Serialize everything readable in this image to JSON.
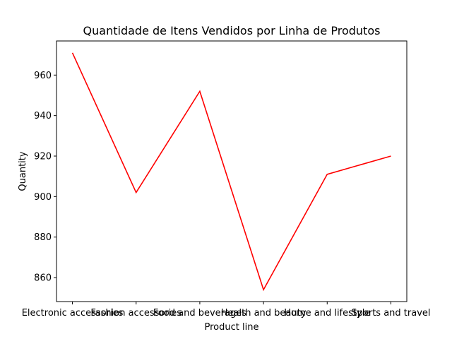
{
  "chart_data": {
    "type": "line",
    "title": "Quantidade de Itens Vendidos por Linha de Produtos",
    "xlabel": "Product line",
    "ylabel": "Quantity",
    "categories": [
      "Electronic accessories",
      "Fashion accessories",
      "Food and beverages",
      "Health and beauty",
      "Home and lifestyle",
      "Sports and travel"
    ],
    "series": [
      {
        "values": [
          971,
          902,
          952,
          854,
          911,
          920
        ],
        "color": "#ff0000"
      }
    ],
    "yticks": [
      860,
      880,
      900,
      920,
      940,
      960
    ],
    "ylim": [
      848.15,
      976.85
    ],
    "grid": false,
    "legend": "none"
  }
}
